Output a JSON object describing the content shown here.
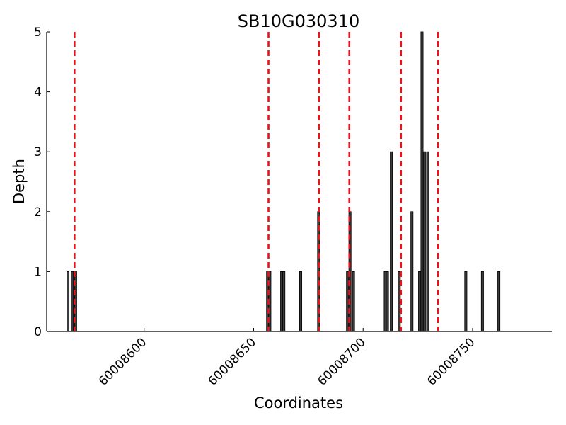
{
  "chart_data": {
    "type": "bar",
    "title": "SB10G030310",
    "xlabel": "Coordinates",
    "ylabel": "Depth",
    "xlim": [
      60008555.5,
      60008786.2
    ],
    "ylim": [
      0,
      5
    ],
    "x_ticks": [
      60008600,
      60008650,
      60008700,
      60008750
    ],
    "y_ticks": [
      0,
      1,
      2,
      3,
      4,
      5
    ],
    "bar_color": "#3c3c3c",
    "marker_color": "#e8141c",
    "bars": [
      {
        "x": 60008565.2,
        "y": 1
      },
      {
        "x": 60008567.2,
        "y": 1
      },
      {
        "x": 60008568.7,
        "y": 1
      },
      {
        "x": 60008656.4,
        "y": 1
      },
      {
        "x": 60008657.4,
        "y": 1
      },
      {
        "x": 60008662.8,
        "y": 1
      },
      {
        "x": 60008663.8,
        "y": 1
      },
      {
        "x": 60008671.5,
        "y": 1
      },
      {
        "x": 60008679.7,
        "y": 2
      },
      {
        "x": 60008692.9,
        "y": 1
      },
      {
        "x": 60008694.0,
        "y": 2
      },
      {
        "x": 60008695.6,
        "y": 1
      },
      {
        "x": 60008710.1,
        "y": 1
      },
      {
        "x": 60008711.1,
        "y": 1
      },
      {
        "x": 60008712.9,
        "y": 3
      },
      {
        "x": 60008716.5,
        "y": 1
      },
      {
        "x": 60008722.3,
        "y": 2
      },
      {
        "x": 60008725.8,
        "y": 1
      },
      {
        "x": 60008726.9,
        "y": 5
      },
      {
        "x": 60008728.0,
        "y": 3
      },
      {
        "x": 60008729.5,
        "y": 3
      },
      {
        "x": 60008746.9,
        "y": 1
      },
      {
        "x": 60008754.5,
        "y": 1
      },
      {
        "x": 60008762.0,
        "y": 1
      }
    ],
    "markers": [
      60008568.2,
      60008656.8,
      60008679.9,
      60008693.7,
      60008717.3,
      60008734.2
    ]
  }
}
